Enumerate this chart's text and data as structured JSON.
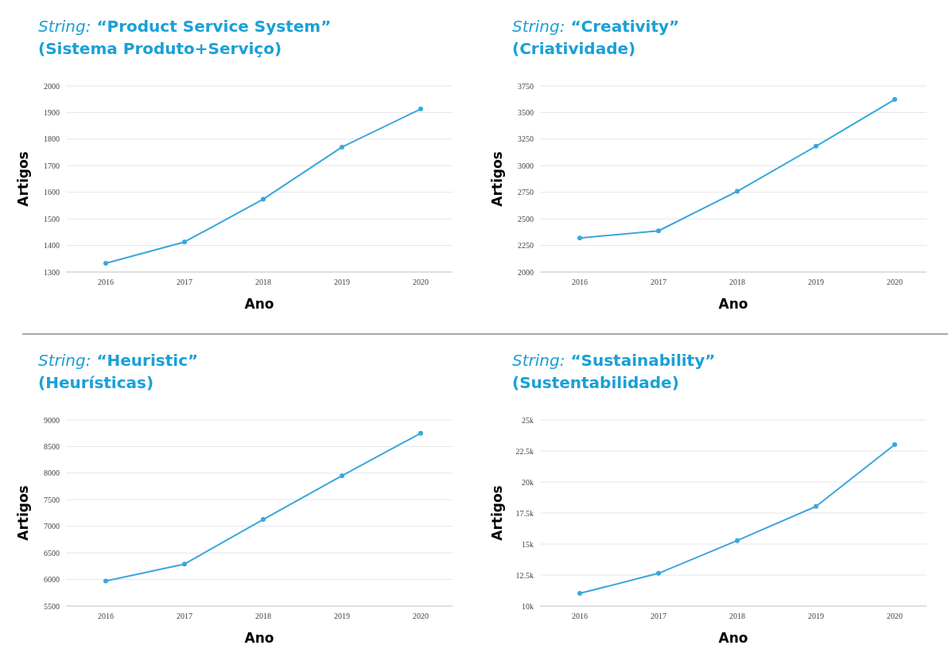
{
  "chart_data": [
    {
      "type": "line",
      "title": "String: “Product Service System”",
      "subtitle": "(Sistema Produto+Serviço)",
      "xlabel": "Ano",
      "ylabel": "Artigos",
      "categories": [
        "2016",
        "2017",
        "2018",
        "2019",
        "2020"
      ],
      "series": [
        {
          "color": "#3aa6dc",
          "values": [
            1333,
            1413,
            1574,
            1770,
            1913
          ]
        }
      ],
      "ylim": [
        1300,
        2000
      ],
      "yticks": [
        1300,
        1400,
        1500,
        1600,
        1700,
        1800,
        1900,
        2000
      ],
      "grid": "y",
      "marker": "circle"
    },
    {
      "type": "line",
      "title": "String: “Creativity”",
      "subtitle": "(Criatividade)",
      "xlabel": "Ano",
      "ylabel": "Artigos",
      "categories": [
        "2016",
        "2017",
        "2018",
        "2019",
        "2020"
      ],
      "series": [
        {
          "color": "#3aa6dc",
          "values": [
            2320,
            2387,
            2759,
            3183,
            3622
          ]
        }
      ],
      "ylim": [
        2000,
        3750
      ],
      "yticks": [
        2000,
        2250,
        2500,
        2750,
        3000,
        3250,
        3500,
        3750
      ],
      "grid": "y",
      "marker": "circle"
    },
    {
      "type": "line",
      "title": "String: “Heuristic”",
      "subtitle": "(Heurísticas)",
      "xlabel": "Ano",
      "ylabel": "Artigos",
      "categories": [
        "2016",
        "2017",
        "2018",
        "2019",
        "2020"
      ],
      "series": [
        {
          "color": "#3aa6dc",
          "values": [
            5970,
            6290,
            7130,
            7950,
            8750
          ]
        }
      ],
      "ylim": [
        5500,
        9000
      ],
      "yticks": [
        5500,
        6000,
        6500,
        7000,
        7500,
        8000,
        8500,
        9000
      ],
      "grid": "y",
      "marker": "circle"
    },
    {
      "type": "line",
      "title": "String: “Sustainability”",
      "subtitle": "(Sustentabilidade)",
      "xlabel": "Ano",
      "ylabel": "Artigos",
      "categories": [
        "2016",
        "2017",
        "2018",
        "2019",
        "2020"
      ],
      "series": [
        {
          "color": "#3aa6dc",
          "values": [
            11020,
            12640,
            15280,
            18030,
            23010
          ]
        }
      ],
      "ylim": [
        10000,
        25000
      ],
      "yticks": [
        {
          "value": 10000,
          "label": "10k"
        },
        {
          "value": 12500,
          "label": "12.5k"
        },
        {
          "value": 15000,
          "label": "15k"
        },
        {
          "value": 17500,
          "label": "17.5k"
        },
        {
          "value": 20000,
          "label": "20k"
        },
        {
          "value": 22500,
          "label": "22.5k"
        },
        {
          "value": 25000,
          "label": "25k"
        }
      ],
      "grid": "y",
      "marker": "circle"
    }
  ]
}
